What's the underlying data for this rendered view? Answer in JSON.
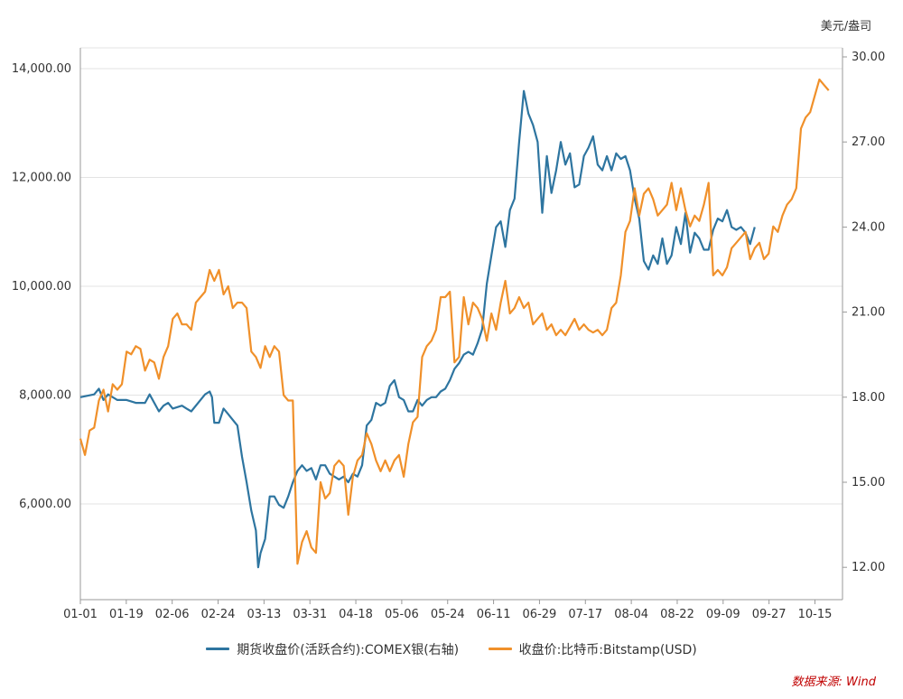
{
  "chart_data": {
    "type": "line",
    "title": "",
    "x_labels": [
      "01-01",
      "01-19",
      "02-06",
      "02-24",
      "03-13",
      "03-31",
      "04-18",
      "05-06",
      "05-24",
      "06-11",
      "06-29",
      "07-17",
      "08-04",
      "08-22",
      "09-09",
      "09-27",
      "10-15"
    ],
    "left_axis": {
      "min": 4500,
      "max": 14400,
      "ticks": [
        6000,
        8000,
        10000,
        12000,
        14000
      ],
      "tick_labels": [
        "6,000.00",
        "8,000.00",
        "10,000.00",
        "12,000.00",
        "14,000.00"
      ]
    },
    "right_axis": {
      "unit": "美元/盎司",
      "min": 10.8,
      "max": 30.0,
      "ticks": [
        12,
        15,
        18,
        21,
        24,
        27,
        30
      ],
      "tick_labels": [
        "12.00",
        "15.00",
        "18.00",
        "21.00",
        "24.00",
        "27.00",
        "30.00"
      ]
    },
    "series": [
      {
        "name": "期货收盘价(活跃合约):COMEX银(右轴)",
        "axis": "right",
        "color": "#2e75a0",
        "points": [
          [
            0,
            18.0
          ],
          [
            3,
            18.1
          ],
          [
            4,
            18.3
          ],
          [
            5,
            17.9
          ],
          [
            6,
            18.1
          ],
          [
            8,
            17.9
          ],
          [
            10,
            17.9
          ],
          [
            12,
            17.8
          ],
          [
            14,
            17.8
          ],
          [
            15,
            18.1
          ],
          [
            17,
            17.5
          ],
          [
            18,
            17.7
          ],
          [
            19,
            17.8
          ],
          [
            20,
            17.6
          ],
          [
            22,
            17.7
          ],
          [
            23,
            17.6
          ],
          [
            24,
            17.5
          ],
          [
            26,
            17.9
          ],
          [
            27,
            18.1
          ],
          [
            28,
            18.2
          ],
          [
            28.5,
            18.0
          ],
          [
            29,
            17.1
          ],
          [
            30,
            17.1
          ],
          [
            31,
            17.6
          ],
          [
            32,
            17.4
          ],
          [
            34,
            17.0
          ],
          [
            35,
            15.9
          ],
          [
            36,
            15.0
          ],
          [
            37,
            14.0
          ],
          [
            38,
            13.3
          ],
          [
            38.5,
            12.0
          ],
          [
            39,
            12.5
          ],
          [
            40,
            13.0
          ],
          [
            41,
            14.5
          ],
          [
            42,
            14.5
          ],
          [
            43,
            14.2
          ],
          [
            44,
            14.1
          ],
          [
            45,
            14.5
          ],
          [
            46,
            15.0
          ],
          [
            47,
            15.4
          ],
          [
            48,
            15.6
          ],
          [
            49,
            15.4
          ],
          [
            50,
            15.5
          ],
          [
            51,
            15.1
          ],
          [
            52,
            15.6
          ],
          [
            53,
            15.6
          ],
          [
            54,
            15.3
          ],
          [
            56,
            15.1
          ],
          [
            57,
            15.2
          ],
          [
            58,
            15.0
          ],
          [
            59,
            15.3
          ],
          [
            60,
            15.2
          ],
          [
            61,
            15.6
          ],
          [
            62,
            17.0
          ],
          [
            63,
            17.2
          ],
          [
            64,
            17.8
          ],
          [
            65,
            17.7
          ],
          [
            66,
            17.8
          ],
          [
            67,
            18.4
          ],
          [
            68,
            18.6
          ],
          [
            69,
            18.0
          ],
          [
            70,
            17.9
          ],
          [
            71,
            17.5
          ],
          [
            72,
            17.5
          ],
          [
            73,
            17.9
          ],
          [
            74,
            17.7
          ],
          [
            75,
            17.9
          ],
          [
            76,
            18.0
          ],
          [
            77,
            18.0
          ],
          [
            78,
            18.2
          ],
          [
            79,
            18.3
          ],
          [
            80,
            18.6
          ],
          [
            81,
            19.0
          ],
          [
            82,
            19.2
          ],
          [
            83,
            19.5
          ],
          [
            84,
            19.6
          ],
          [
            85,
            19.5
          ],
          [
            86,
            19.9
          ],
          [
            87,
            20.4
          ],
          [
            88,
            22.0
          ],
          [
            89,
            23.0
          ],
          [
            90,
            24.0
          ],
          [
            91,
            24.2
          ],
          [
            92,
            23.3
          ],
          [
            93,
            24.6
          ],
          [
            94,
            25.0
          ],
          [
            95,
            27.0
          ],
          [
            96,
            28.8
          ],
          [
            97,
            28.0
          ],
          [
            98,
            27.6
          ],
          [
            99,
            27.0
          ],
          [
            100,
            24.5
          ],
          [
            101,
            26.5
          ],
          [
            102,
            25.2
          ],
          [
            103,
            26.0
          ],
          [
            104,
            27.0
          ],
          [
            105,
            26.2
          ],
          [
            106,
            26.6
          ],
          [
            107,
            25.4
          ],
          [
            108,
            25.5
          ],
          [
            109,
            26.5
          ],
          [
            110,
            26.8
          ],
          [
            111,
            27.2
          ],
          [
            112,
            26.2
          ],
          [
            113,
            26.0
          ],
          [
            114,
            26.5
          ],
          [
            115,
            26.0
          ],
          [
            116,
            26.6
          ],
          [
            117,
            26.4
          ],
          [
            118,
            26.5
          ],
          [
            119,
            26.0
          ],
          [
            120,
            25.0
          ],
          [
            121,
            24.3
          ],
          [
            122,
            22.8
          ],
          [
            123,
            22.5
          ],
          [
            124,
            23.0
          ],
          [
            125,
            22.7
          ],
          [
            126,
            23.6
          ],
          [
            127,
            22.7
          ],
          [
            128,
            23.0
          ],
          [
            129,
            24.0
          ],
          [
            130,
            23.4
          ],
          [
            131,
            24.5
          ],
          [
            132,
            23.1
          ],
          [
            133,
            23.8
          ],
          [
            134,
            23.6
          ],
          [
            135,
            23.2
          ],
          [
            136,
            23.2
          ],
          [
            137,
            23.9
          ],
          [
            138,
            24.3
          ],
          [
            139,
            24.2
          ],
          [
            140,
            24.6
          ],
          [
            141,
            24.0
          ],
          [
            142,
            23.9
          ],
          [
            143,
            24.0
          ],
          [
            144,
            23.8
          ],
          [
            145,
            23.4
          ],
          [
            146,
            24.0
          ]
        ]
      },
      {
        "name": "收盘价:比特币:Bitstamp(USD)",
        "axis": "left",
        "color": "#f0902a",
        "points": [
          [
            0,
            7200
          ],
          [
            1,
            6900
          ],
          [
            2,
            7350
          ],
          [
            3,
            7400
          ],
          [
            4,
            7900
          ],
          [
            5,
            8100
          ],
          [
            6,
            7700
          ],
          [
            7,
            8200
          ],
          [
            8,
            8100
          ],
          [
            9,
            8200
          ],
          [
            10,
            8800
          ],
          [
            11,
            8750
          ],
          [
            12,
            8900
          ],
          [
            13,
            8850
          ],
          [
            14,
            8450
          ],
          [
            15,
            8650
          ],
          [
            16,
            8600
          ],
          [
            17,
            8300
          ],
          [
            18,
            8700
          ],
          [
            19,
            8900
          ],
          [
            20,
            9400
          ],
          [
            21,
            9500
          ],
          [
            22,
            9300
          ],
          [
            23,
            9300
          ],
          [
            24,
            9200
          ],
          [
            25,
            9700
          ],
          [
            26,
            9800
          ],
          [
            27,
            9900
          ],
          [
            28,
            10300
          ],
          [
            29,
            10100
          ],
          [
            30,
            10300
          ],
          [
            31,
            9850
          ],
          [
            32,
            10000
          ],
          [
            33,
            9600
          ],
          [
            34,
            9700
          ],
          [
            35,
            9700
          ],
          [
            36,
            9600
          ],
          [
            37,
            8800
          ],
          [
            38,
            8700
          ],
          [
            39,
            8500
          ],
          [
            40,
            8900
          ],
          [
            41,
            8700
          ],
          [
            42,
            8900
          ],
          [
            43,
            8800
          ],
          [
            44,
            8000
          ],
          [
            45,
            7900
          ],
          [
            46,
            7900
          ],
          [
            47,
            4900
          ],
          [
            48,
            5300
          ],
          [
            49,
            5500
          ],
          [
            50,
            5200
          ],
          [
            51,
            5100
          ],
          [
            52,
            6400
          ],
          [
            53,
            6100
          ],
          [
            54,
            6200
          ],
          [
            55,
            6700
          ],
          [
            56,
            6800
          ],
          [
            57,
            6700
          ],
          [
            58,
            5800
          ],
          [
            59,
            6500
          ],
          [
            60,
            6800
          ],
          [
            61,
            6900
          ],
          [
            62,
            7300
          ],
          [
            63,
            7100
          ],
          [
            64,
            6800
          ],
          [
            65,
            6600
          ],
          [
            66,
            6800
          ],
          [
            67,
            6600
          ],
          [
            68,
            6800
          ],
          [
            69,
            6900
          ],
          [
            70,
            6500
          ],
          [
            71,
            7100
          ],
          [
            72,
            7500
          ],
          [
            73,
            7600
          ],
          [
            74,
            8700
          ],
          [
            75,
            8900
          ],
          [
            76,
            9000
          ],
          [
            77,
            9200
          ],
          [
            78,
            9800
          ],
          [
            79,
            9800
          ],
          [
            80,
            9900
          ],
          [
            81,
            8600
          ],
          [
            82,
            8700
          ],
          [
            83,
            9800
          ],
          [
            84,
            9300
          ],
          [
            85,
            9700
          ],
          [
            86,
            9600
          ],
          [
            87,
            9400
          ],
          [
            88,
            9000
          ],
          [
            89,
            9500
          ],
          [
            90,
            9200
          ],
          [
            91,
            9700
          ],
          [
            92,
            10100
          ],
          [
            93,
            9500
          ],
          [
            94,
            9600
          ],
          [
            95,
            9800
          ],
          [
            96,
            9600
          ],
          [
            97,
            9700
          ],
          [
            98,
            9300
          ],
          [
            99,
            9400
          ],
          [
            100,
            9500
          ],
          [
            101,
            9200
          ],
          [
            102,
            9300
          ],
          [
            103,
            9100
          ],
          [
            104,
            9200
          ],
          [
            105,
            9100
          ],
          [
            106,
            9250
          ],
          [
            107,
            9400
          ],
          [
            108,
            9200
          ],
          [
            109,
            9300
          ],
          [
            110,
            9200
          ],
          [
            111,
            9150
          ],
          [
            112,
            9200
          ],
          [
            113,
            9100
          ],
          [
            114,
            9200
          ],
          [
            115,
            9600
          ],
          [
            116,
            9700
          ],
          [
            117,
            10200
          ],
          [
            118,
            11000
          ],
          [
            119,
            11200
          ],
          [
            120,
            11800
          ],
          [
            121,
            11300
          ],
          [
            122,
            11700
          ],
          [
            123,
            11800
          ],
          [
            124,
            11600
          ],
          [
            125,
            11300
          ],
          [
            126,
            11400
          ],
          [
            127,
            11500
          ],
          [
            128,
            11900
          ],
          [
            129,
            11400
          ],
          [
            130,
            11800
          ],
          [
            131,
            11400
          ],
          [
            132,
            11100
          ],
          [
            133,
            11300
          ],
          [
            134,
            11200
          ],
          [
            135,
            11500
          ],
          [
            136,
            11900
          ],
          [
            137,
            10200
          ],
          [
            138,
            10300
          ],
          [
            139,
            10200
          ],
          [
            140,
            10350
          ],
          [
            141,
            10700
          ],
          [
            142,
            10800
          ],
          [
            143,
            10900
          ],
          [
            144,
            11000
          ],
          [
            145,
            10500
          ],
          [
            146,
            10700
          ],
          [
            147,
            10800
          ],
          [
            148,
            10500
          ],
          [
            149,
            10600
          ],
          [
            150,
            11100
          ],
          [
            151,
            11000
          ],
          [
            152,
            11300
          ],
          [
            153,
            11500
          ],
          [
            154,
            11600
          ],
          [
            155,
            11800
          ],
          [
            156,
            12900
          ],
          [
            157,
            13100
          ],
          [
            158,
            13200
          ],
          [
            159,
            13500
          ],
          [
            160,
            13800
          ],
          [
            161,
            13700
          ],
          [
            162,
            13600
          ]
        ]
      }
    ],
    "legend_position": "bottom"
  },
  "legend": [
    {
      "label": "期货收盘价(活跃合约):COMEX银(右轴)",
      "color": "#2e75a0"
    },
    {
      "label": "收盘价:比特币:Bitstamp(USD)",
      "color": "#f0902a"
    }
  ],
  "source_note": "数据来源: Wind"
}
